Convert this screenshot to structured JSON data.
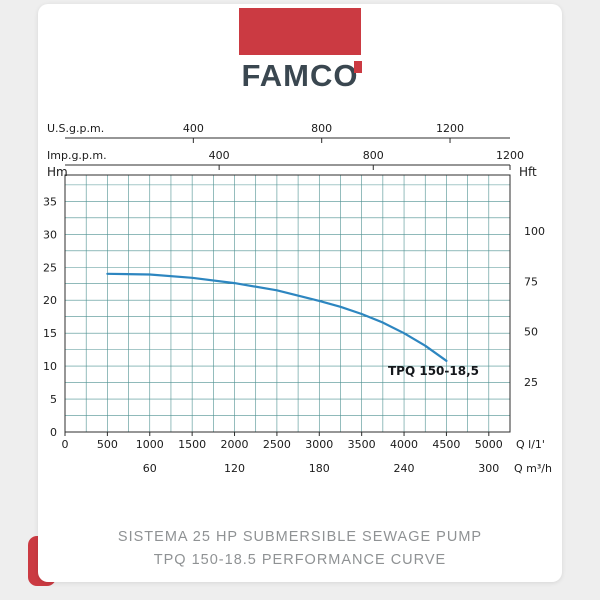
{
  "theme": {
    "accent_red": "#cb3a42",
    "brand_text_color": "#3a4750",
    "grid_color": "#4e9191",
    "curve_color": "#2d86c0"
  },
  "logo": {
    "brand_part1": "FAMC",
    "brand_part2": "O"
  },
  "caption": {
    "line1": "SISTEMA 25 HP SUBMERSIBLE SEWAGE PUMP",
    "line2": "TPQ 150-18.5 PERFORMANCE CURVE"
  },
  "chart_data": {
    "type": "line",
    "title": "TPQ 150-18,5 pump performance curve",
    "curve_label": "TPQ 150-18,5",
    "series": [
      {
        "name": "TPQ 150-18,5",
        "x": [
          500,
          1000,
          1500,
          2000,
          2500,
          3000,
          3250,
          3500,
          3750,
          4000,
          4250,
          4500
        ],
        "y": [
          24.0,
          23.9,
          23.4,
          22.6,
          21.5,
          19.9,
          19.0,
          17.9,
          16.6,
          15.0,
          13.1,
          10.8
        ]
      }
    ],
    "x_axis": {
      "label": "Q l/1'",
      "ticks": [
        0,
        500,
        1000,
        1500,
        2000,
        2500,
        3000,
        3500,
        4000,
        4500,
        5000
      ],
      "range": [
        0,
        5250
      ]
    },
    "x_axis_m3h": {
      "label": "Q m³/h",
      "ticks": [
        60,
        120,
        180,
        240,
        300
      ]
    },
    "top_axis_usgpm": {
      "label": "U.S.g.p.m.",
      "ticks": [
        400,
        800,
        1200
      ]
    },
    "top_axis_impgpm": {
      "label": "Imp.g.p.m.",
      "ticks": [
        400,
        800,
        1200
      ]
    },
    "y_axis": {
      "label": "Hm",
      "ticks": [
        0,
        5,
        10,
        15,
        20,
        25,
        30,
        35
      ],
      "range": [
        0,
        39
      ]
    },
    "y_axis_right": {
      "label": "Hft",
      "ticks": [
        25,
        50,
        75,
        100
      ]
    },
    "grid": {
      "x_step": 250,
      "y_step": 2.5,
      "on": true
    },
    "legend": "none"
  }
}
